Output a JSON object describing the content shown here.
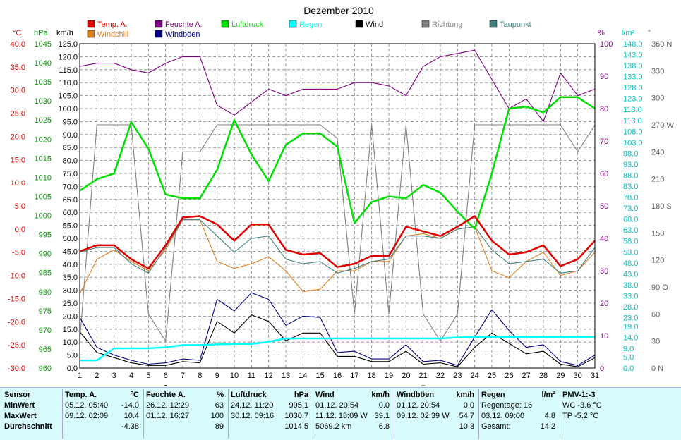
{
  "chart_data": {
    "type": "line",
    "title": "Dezember 2010",
    "x": [
      1,
      2,
      3,
      4,
      5,
      6,
      7,
      8,
      9,
      10,
      11,
      12,
      13,
      14,
      15,
      16,
      17,
      18,
      19,
      20,
      21,
      22,
      23,
      24,
      25,
      26,
      27,
      28,
      29,
      30,
      31
    ],
    "legend": [
      {
        "name": "Temp. A.",
        "color": "#e00000"
      },
      {
        "name": "Feuchte A.",
        "color": "#800080"
      },
      {
        "name": "Luftdruck",
        "color": "#00e000"
      },
      {
        "name": "Regen",
        "color": "#00ffff"
      },
      {
        "name": "Wind",
        "color": "#000000"
      },
      {
        "name": "Richtung",
        "color": "#808080"
      },
      {
        "name": "Taupunkt",
        "color": "#408080"
      },
      {
        "name": "Windchill",
        "color": "#e08020"
      },
      {
        "name": "Windböen",
        "color": "#000080"
      }
    ],
    "axes": {
      "temp": {
        "unit": "°C",
        "min": -30,
        "max": 40,
        "ticks": [
          40,
          35,
          30,
          25,
          20,
          15,
          10,
          5,
          0,
          -5,
          -10,
          -15,
          -20,
          -25,
          -30
        ],
        "labels": [
          "40.0",
          "35.0",
          "30.0",
          "25.0",
          "20.0",
          "15.0",
          "10.0",
          "5.0",
          "0.0",
          "-5.0",
          "-10.0",
          "-15.0",
          "-20.0",
          "-25.0",
          "-30.0"
        ],
        "color": "#e00000"
      },
      "pressure": {
        "unit": "hPa",
        "min": 960,
        "max": 1045,
        "ticks": [
          1045,
          1040,
          1035,
          1030,
          1025,
          1020,
          1015,
          1010,
          1005,
          1000,
          995,
          990,
          985,
          980,
          975,
          970,
          965,
          960
        ],
        "labels": [
          "1045",
          "1040",
          "1035",
          "1030",
          "1025",
          "1020",
          "1015",
          "1010",
          "1005",
          "1000",
          "995",
          "990",
          "985",
          "980",
          "975",
          "970",
          "965",
          "960"
        ],
        "color": "#00a000"
      },
      "wind": {
        "unit": "km/h",
        "min": 0,
        "max": 125,
        "ticks": [
          125,
          120,
          115,
          110,
          105,
          100,
          95,
          90,
          85,
          80,
          75,
          70,
          65,
          60,
          55,
          50,
          45,
          40,
          35,
          30,
          25,
          20,
          15,
          10,
          5,
          0
        ],
        "labels": [
          "125.0",
          "120.0",
          "115.0",
          "110.0",
          "105.0",
          "100.0",
          "95.0",
          "90.0",
          "85.0",
          "80.0",
          "75.0",
          "70.0",
          "65.0",
          "60.0",
          "55.0",
          "50.0",
          "45.0",
          "40.0",
          "35.0",
          "30.0",
          "25.0",
          "20.0",
          "15.0",
          "10.0",
          "5.0",
          "0.0"
        ],
        "color": "#000000"
      },
      "humidity": {
        "unit": "%",
        "min": 0,
        "max": 100,
        "ticks": [
          100,
          90,
          80,
          70,
          60,
          50,
          40,
          30,
          20,
          10,
          0
        ],
        "labels": [
          "100",
          "90",
          "80",
          "70",
          "60",
          "50",
          "40",
          "30",
          "20",
          "10",
          "0"
        ],
        "color": "#800080"
      },
      "rain": {
        "unit": "l/m²",
        "min": 0,
        "max": 148,
        "ticks": [
          148,
          143,
          138,
          133,
          128,
          123,
          118,
          113,
          108,
          103,
          98,
          93,
          88,
          83,
          78,
          73,
          68,
          63,
          58,
          53,
          48,
          43,
          38,
          33,
          28,
          23,
          19,
          14,
          9,
          5,
          0
        ],
        "labels": [
          "148.0",
          "143.0",
          "138.0",
          "133.0",
          "128.0",
          "123.0",
          "118.0",
          "113.0",
          "108.0",
          "103.0",
          "98.0",
          "93.0",
          "88.0",
          "83.0",
          "78.0",
          "73.0",
          "68.0",
          "63.0",
          "58.0",
          "53.0",
          "48.0",
          "43.0",
          "38.0",
          "33.0",
          "28.0",
          "23.0",
          "19.0",
          "14.0",
          "9.0",
          "5.0",
          "0.0"
        ],
        "color": "#00c0c0"
      },
      "direction": {
        "unit": "°",
        "min": 0,
        "max": 360,
        "ticks": [
          360,
          330,
          300,
          270,
          240,
          210,
          180,
          150,
          120,
          90,
          60,
          30,
          0
        ],
        "labels": [
          "360 N",
          "330",
          "300",
          "270 W",
          "240",
          "210",
          "180 S",
          "150",
          "120",
          "90 O",
          "60",
          "30",
          "0 N"
        ],
        "color": "#606060"
      }
    },
    "series": [
      {
        "name": "Temp. A.",
        "axis": "temp",
        "values": [
          -4.8,
          -3.5,
          -3.5,
          -6.5,
          -8.5,
          -3.5,
          2.5,
          2.8,
          1.0,
          -2.5,
          1.0,
          1.0,
          -4.5,
          -5.5,
          -5.2,
          -8.2,
          -7.5,
          -5.8,
          -5.8,
          0.5,
          -0.5,
          -1.5,
          0.5,
          2.8,
          -2.5,
          -5.5,
          -5.0,
          -3.5,
          -8.0,
          -6.5,
          -2.5
        ],
        "color": "#e00000"
      },
      {
        "name": "Feuchte A.",
        "axis": "humidity",
        "values": [
          93,
          94,
          94,
          92,
          91,
          94,
          96,
          96,
          81,
          78,
          82,
          86,
          84,
          86,
          86,
          86,
          88,
          88,
          87,
          84,
          93,
          96,
          97,
          98,
          89,
          80,
          83,
          76,
          91,
          84,
          86
        ],
        "color": "#800080"
      },
      {
        "name": "Luftdruck",
        "axis": "pressure",
        "values": [
          1006.5,
          1009.5,
          1011,
          1024.5,
          1017.5,
          1005.5,
          1004.5,
          1004.5,
          1012,
          1025,
          1016,
          1009,
          1018.5,
          1021.5,
          1021.5,
          1018,
          998,
          1003.5,
          1005,
          1004.5,
          1008,
          1006,
          1001,
          996.5,
          1011,
          1028,
          1028.5,
          1027,
          1031,
          1031,
          1028
        ],
        "color": "#00e000"
      },
      {
        "name": "Regen",
        "axis": "rain",
        "values": [
          3.5,
          3.5,
          9,
          9,
          9,
          9.5,
          10.5,
          10.5,
          10.8,
          11,
          11,
          12,
          13.5,
          13.5,
          13.5,
          13.5,
          13.5,
          13.5,
          13.5,
          13.5,
          13.5,
          13.5,
          14,
          14.2,
          14.2,
          14.2,
          14.2,
          14.2,
          14.2,
          14.2,
          14.2
        ],
        "color": "#00ffff"
      },
      {
        "name": "Wind",
        "axis": "wind",
        "values": [
          14,
          6,
          4,
          2,
          1,
          1,
          2.5,
          2,
          18,
          13.5,
          20.5,
          18,
          10.5,
          13.5,
          13.5,
          4.5,
          4.5,
          2.5,
          2.5,
          6.5,
          1.5,
          2,
          0.5,
          8,
          13.5,
          9.5,
          5.5,
          6.5,
          1.5,
          0.5,
          4
        ],
        "color": "#000000"
      },
      {
        "name": "Richtung",
        "axis": "direction",
        "values": [
          30,
          270,
          270,
          270,
          60,
          30,
          240,
          240,
          270,
          270,
          270,
          270,
          270,
          270,
          270,
          255,
          60,
          270,
          60,
          270,
          60,
          30,
          60,
          270,
          270,
          270,
          270,
          270,
          270,
          240,
          270
        ],
        "color": "#808080"
      },
      {
        "name": "Taupunkt",
        "axis": "temp",
        "values": [
          -5,
          -4,
          -4,
          -7.5,
          -9.5,
          -4,
          2,
          2,
          -1.5,
          -5,
          -2,
          -1.5,
          -6.5,
          -7.5,
          -7,
          -9.5,
          -8.5,
          -7,
          -6.5,
          -1.5,
          -1.5,
          -2,
          0,
          0.5,
          -4.5,
          -7.5,
          -7,
          -6.5,
          -9.5,
          -9,
          -4
        ],
        "color": "#408080"
      },
      {
        "name": "Windchill",
        "axis": "temp",
        "values": [
          -14,
          -6.5,
          -4.5,
          -7,
          -9,
          -4.5,
          2,
          2,
          -7,
          -8.5,
          -7.5,
          -6,
          -9,
          -13.5,
          -13,
          -9,
          -9,
          -7,
          -7,
          -1.5,
          -1,
          -2,
          0,
          0.5,
          -9,
          -10.5,
          -7,
          -5,
          -10,
          -9,
          -5
        ],
        "color": "#e08020"
      },
      {
        "name": "Windböen",
        "axis": "wind",
        "values": [
          19.5,
          8,
          5,
          3,
          1.5,
          2,
          3.5,
          3,
          26.5,
          22,
          29,
          26.5,
          16.5,
          20,
          19.5,
          6,
          6.5,
          3.5,
          3.5,
          9,
          2.5,
          3,
          1,
          12,
          22.5,
          14.5,
          8,
          9,
          2.5,
          1,
          5
        ],
        "color": "#000080"
      }
    ],
    "moon_markers": [
      {
        "day": 6,
        "symbol": "●"
      },
      {
        "day": 21,
        "symbol": "○"
      }
    ]
  },
  "stats": {
    "row_labels": [
      "Sensor",
      "MinWert",
      "MaxWert",
      "Durchschnitt"
    ],
    "columns": [
      {
        "title": "Temp. A.",
        "unit": "°C",
        "rows": [
          [
            "05.12.  05:40",
            "-14.0"
          ],
          [
            "09.12.  02:09",
            "10.4"
          ],
          [
            "",
            "-4.38"
          ]
        ]
      },
      {
        "title": "Feuchte A.",
        "unit": "%",
        "rows": [
          [
            "26.12.  12:29",
            "63"
          ],
          [
            "01.12.  16:27",
            "100"
          ],
          [
            "",
            "89"
          ]
        ]
      },
      {
        "title": "Luftdruck",
        "unit": "hPa",
        "rows": [
          [
            "24.12.  11:20",
            "995.1"
          ],
          [
            "30.12.  09:16",
            "1030.7"
          ],
          [
            "",
            "1014.5"
          ]
        ]
      },
      {
        "title": "Wind",
        "unit": "km/h",
        "rows": [
          [
            "01.12.  20:54",
            "0.0"
          ],
          [
            "11.12.  18:09  W",
            "39.1"
          ],
          [
            "5069.2 km",
            "6.8"
          ]
        ]
      },
      {
        "title": "Windböen",
        "unit": "km/h",
        "rows": [
          [
            "01.12.  20:54",
            "0.0"
          ],
          [
            "09.12.  02:39  W",
            "54.7"
          ],
          [
            "",
            "10.3"
          ]
        ]
      },
      {
        "title": "Regen",
        "unit": "l/m²",
        "rows": [
          [
            "Regentage: 16",
            ""
          ],
          [
            "03.12.  09:00",
            "4.8"
          ],
          [
            "Gesamt:",
            "14.2"
          ]
        ]
      },
      {
        "title": "PMV-1:-3",
        "unit": "",
        "rows": [
          [
            "WC -3.6 °C",
            ""
          ],
          [
            "TP -5.2 °C",
            ""
          ],
          [
            "",
            ""
          ]
        ]
      }
    ]
  }
}
